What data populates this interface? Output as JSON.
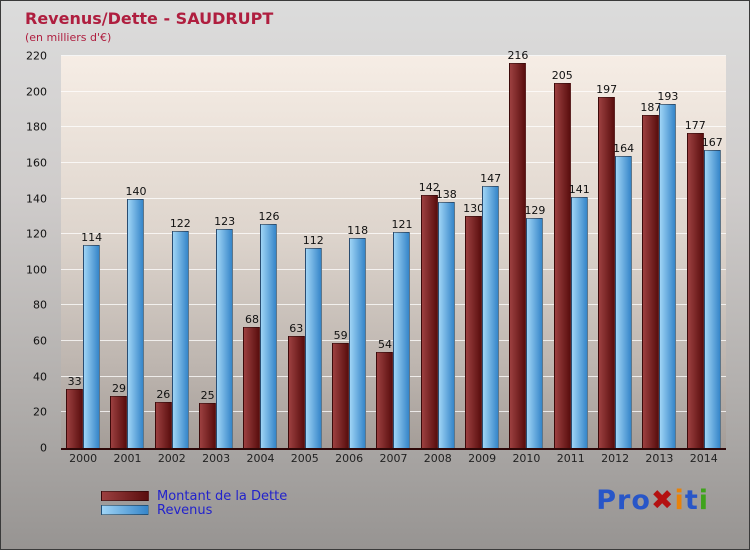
{
  "title": "Revenus/Dette - SAUDRUPT",
  "subtitle": "(en milliers d'€)",
  "colors": {
    "title": "#AF1E3F",
    "legend_text": "#2222cc",
    "axis_line": "#2e0808"
  },
  "chart_data": {
    "type": "bar",
    "title": "Revenus/Dette - SAUDRUPT",
    "subtitle": "(en milliers d'€)",
    "categories": [
      "2000",
      "2001",
      "2002",
      "2003",
      "2004",
      "2005",
      "2006",
      "2007",
      "2008",
      "2009",
      "2010",
      "2011",
      "2012",
      "2013",
      "2014"
    ],
    "series": [
      {
        "name": "Montant de la Dette",
        "key": "dette",
        "values": [
          33,
          29,
          26,
          25,
          68,
          63,
          59,
          54,
          142,
          130,
          216,
          205,
          197,
          187,
          177
        ],
        "color": "#6e1414",
        "gradient": [
          "#9c4040",
          "#5a0e0e"
        ]
      },
      {
        "name": "Revenus",
        "key": "revenus",
        "values": [
          114,
          140,
          122,
          123,
          126,
          112,
          118,
          121,
          138,
          147,
          129,
          141,
          164,
          193,
          167
        ],
        "color": "#4da3e0",
        "gradient": [
          "#9fd4f5",
          "#3585c9"
        ]
      }
    ],
    "ylim": [
      0,
      220
    ],
    "ytick_step": 20,
    "grid": true,
    "legend_position": "bottom-left",
    "value_labels": true
  },
  "logo": {
    "name": "Proxiti",
    "letters": [
      {
        "ch": "P",
        "color": "#2856c8"
      },
      {
        "ch": "r",
        "color": "#2856c8"
      },
      {
        "ch": "o",
        "color": "#2856c8"
      },
      {
        "ch": "✖",
        "color": "#b41111"
      },
      {
        "ch": "i",
        "color": "#e8820a"
      },
      {
        "ch": "t",
        "color": "#2856c8"
      },
      {
        "ch": "i",
        "color": "#3fa31c"
      }
    ]
  }
}
